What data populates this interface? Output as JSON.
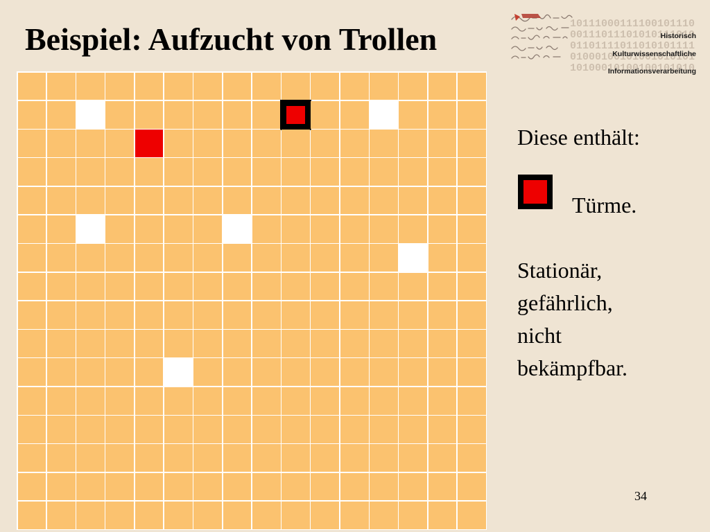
{
  "slide": {
    "title": "Beispiel: Aufzucht von Trollen",
    "page_number": "34"
  },
  "logo": {
    "bits": [
      "10111000111100101110",
      "00111011101010111010",
      "01101111011010101111",
      "01000100101001010101",
      "10100010100100101010"
    ],
    "labels": [
      "Historisch",
      "Kulturwissenschaftliche",
      "Informationsverarbeitung"
    ]
  },
  "sidebar": {
    "intro": "Diese enthält:",
    "legend_label": "Türme.",
    "description_lines": [
      "Stationär,",
      "gefährlich,",
      "nicht",
      "bekämpfbar."
    ]
  },
  "grid": {
    "columns": 16,
    "rows": 16,
    "white_cells": [
      [
        1,
        2
      ],
      [
        1,
        12
      ],
      [
        5,
        2
      ],
      [
        5,
        7
      ],
      [
        6,
        13
      ],
      [
        10,
        5
      ]
    ],
    "red_cells": [
      [
        2,
        4
      ]
    ],
    "tower_cells": [
      [
        1,
        9
      ]
    ]
  },
  "colors": {
    "background": "#EFE4D3",
    "cell": "#FBC26F",
    "gridline": "#FFFFFF",
    "red": "#EE0000",
    "tower_border": "#000000"
  }
}
